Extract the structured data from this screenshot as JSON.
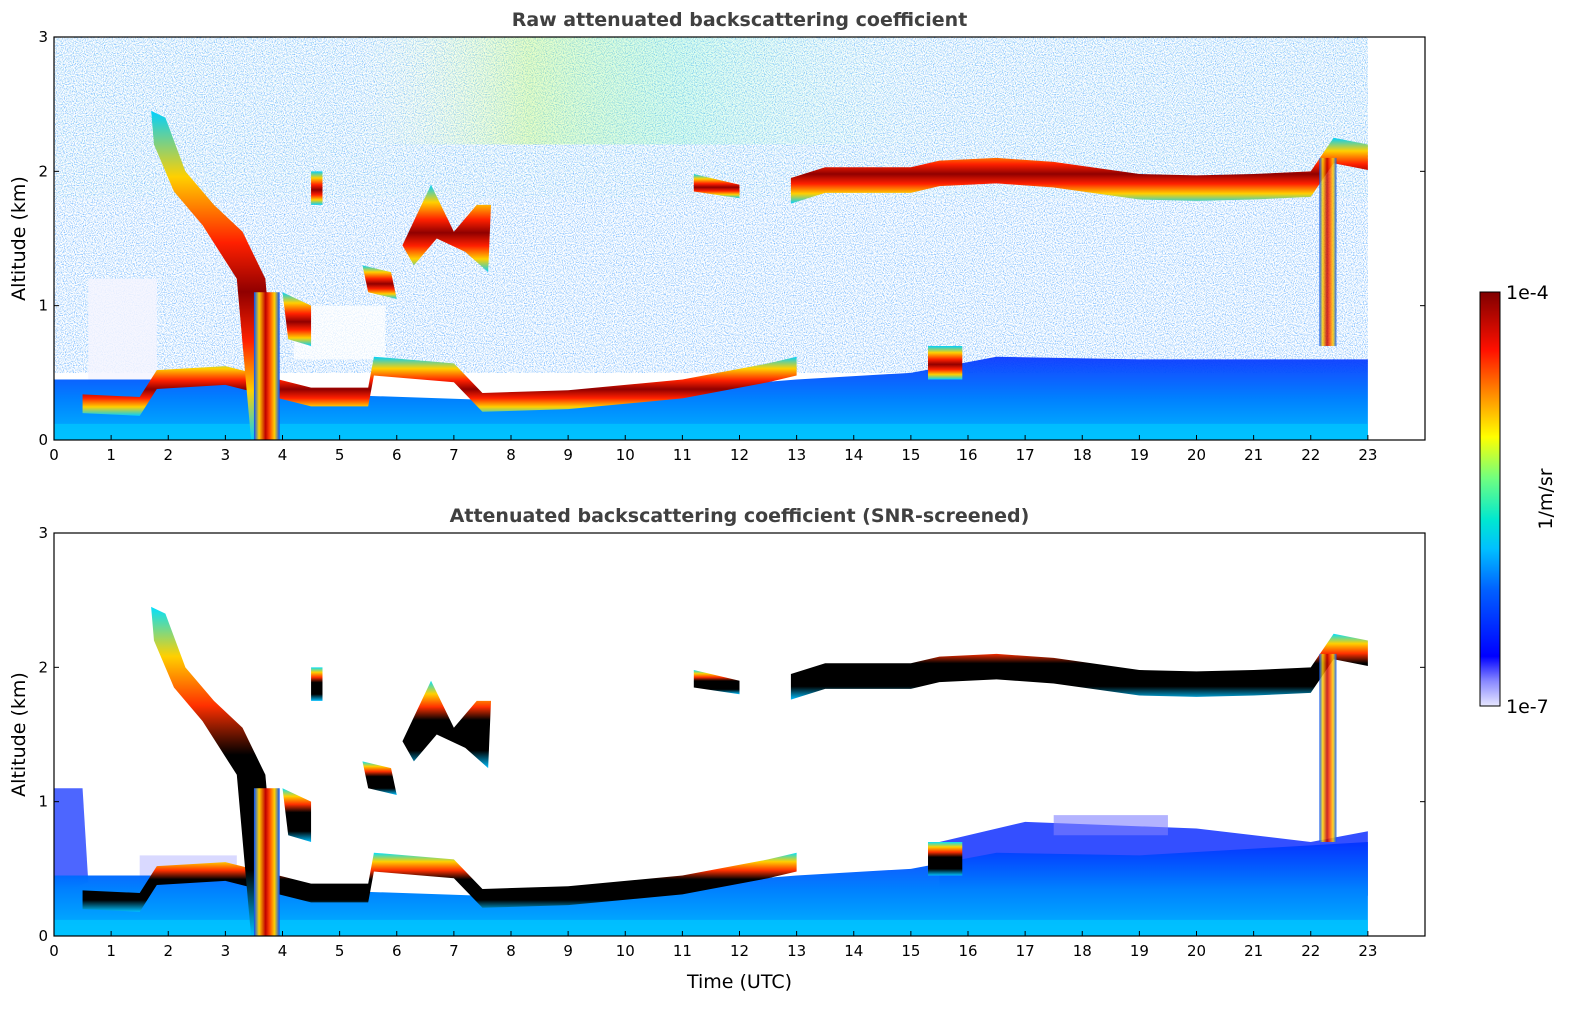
{
  "chart_data": [
    {
      "type": "heatmap",
      "title": "Raw attenuated backscattering coefficient",
      "xlabel": "",
      "ylabel": "Altitude (km)",
      "xlim": [
        0,
        24
      ],
      "ylim": [
        0,
        3
      ],
      "xticks": [
        "0",
        "1",
        "2",
        "3",
        "4",
        "5",
        "6",
        "7",
        "8",
        "9",
        "10",
        "11",
        "12",
        "13",
        "14",
        "15",
        "16",
        "17",
        "18",
        "19",
        "20",
        "21",
        "22",
        "23"
      ],
      "yticks": [
        "0",
        "1",
        "2",
        "3"
      ],
      "data_extent_hours": 23,
      "features": [
        {
          "name": "boundary layer aerosol",
          "time": [
            0,
            23
          ],
          "altitude_km": [
            0,
            0.5
          ]
        },
        {
          "name": "low cloud layer",
          "time": [
            0.5,
            13
          ],
          "altitude_km": [
            0.2,
            0.7
          ]
        },
        {
          "name": "descending cloud",
          "time": [
            1.7,
            4
          ],
          "altitude_km": [
            0,
            2.4
          ]
        },
        {
          "name": "upper cloud layer",
          "time": [
            13,
            23
          ],
          "altitude_km": [
            1.8,
            2.2
          ]
        },
        {
          "name": "background noise",
          "time": [
            0,
            23
          ],
          "altitude_km": [
            0.5,
            3
          ]
        }
      ]
    },
    {
      "type": "heatmap",
      "title": "Attenuated backscattering coefficient (SNR-screened)",
      "xlabel": "Time (UTC)",
      "ylabel": "Altitude (km)",
      "xlim": [
        0,
        24
      ],
      "ylim": [
        0,
        3
      ],
      "xticks": [
        "0",
        "1",
        "2",
        "3",
        "4",
        "5",
        "6",
        "7",
        "8",
        "9",
        "10",
        "11",
        "12",
        "13",
        "14",
        "15",
        "16",
        "17",
        "18",
        "19",
        "20",
        "21",
        "22",
        "23"
      ],
      "yticks": [
        "0",
        "1",
        "2",
        "3"
      ],
      "data_extent_hours": 23,
      "features": [
        {
          "name": "boundary layer aerosol",
          "time": [
            0,
            23
          ],
          "altitude_km": [
            0,
            0.8
          ]
        },
        {
          "name": "low cloud layer",
          "time": [
            0.5,
            13
          ],
          "altitude_km": [
            0.2,
            0.7
          ]
        },
        {
          "name": "descending cloud",
          "time": [
            1.7,
            4
          ],
          "altitude_km": [
            0,
            2.4
          ]
        },
        {
          "name": "upper cloud layer",
          "time": [
            13,
            23
          ],
          "altitude_km": [
            1.8,
            2.2
          ]
        }
      ]
    }
  ],
  "colorbar": {
    "label": "1/m/sr",
    "max_label": "1e-4",
    "min_label": "1e-7",
    "scale": "log",
    "colors": [
      "#e0e0f8",
      "#0000ff",
      "#00a0ff",
      "#00e0d0",
      "#80ff80",
      "#ffff00",
      "#ff8000",
      "#ff0000",
      "#800000"
    ]
  }
}
